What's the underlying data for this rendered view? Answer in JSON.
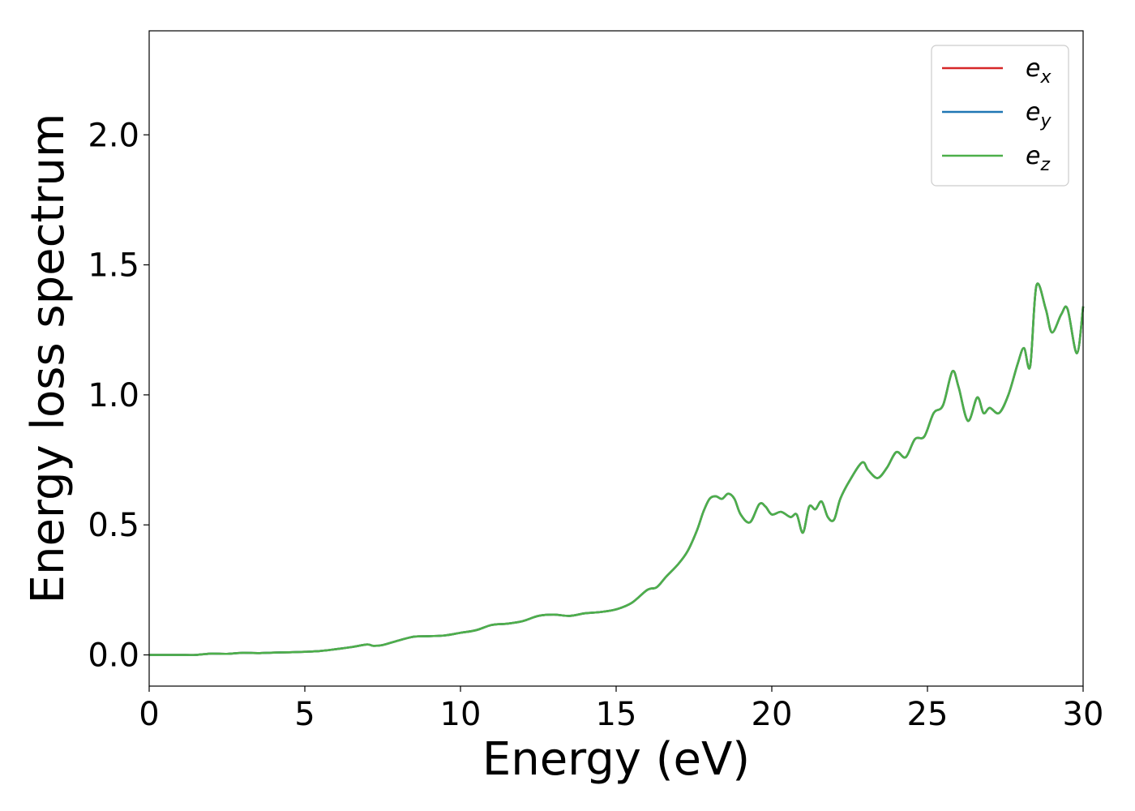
{
  "chart_data": {
    "type": "line",
    "title": "",
    "xlabel": "Energy (eV)",
    "ylabel": "Energy loss spectrum",
    "xlim": [
      0,
      30
    ],
    "ylim": [
      -0.12,
      2.4
    ],
    "xticks": [
      "0",
      "5",
      "10",
      "15",
      "20",
      "25",
      "30"
    ],
    "yticks": [
      "0.0",
      "0.5",
      "1.0",
      "1.5",
      "2.0"
    ],
    "grid": false,
    "legend_position": "top-right",
    "x": [
      0,
      0.5,
      1.0,
      1.5,
      2.0,
      2.5,
      3.0,
      3.5,
      4.0,
      4.5,
      5.0,
      5.5,
      6.0,
      6.5,
      7.0,
      7.2,
      7.5,
      8.0,
      8.5,
      9.0,
      9.5,
      10.0,
      10.5,
      11.0,
      11.5,
      12.0,
      12.5,
      13.0,
      13.5,
      14.0,
      14.5,
      15.0,
      15.5,
      16.0,
      16.3,
      16.6,
      17.0,
      17.3,
      17.6,
      17.8,
      18.0,
      18.2,
      18.4,
      18.6,
      18.8,
      19.0,
      19.3,
      19.6,
      19.8,
      20.0,
      20.3,
      20.6,
      20.8,
      21.0,
      21.2,
      21.4,
      21.6,
      21.8,
      22.0,
      22.2,
      22.5,
      22.9,
      23.1,
      23.4,
      23.7,
      24.0,
      24.3,
      24.6,
      24.9,
      25.2,
      25.5,
      25.8,
      26.0,
      26.3,
      26.6,
      26.8,
      27.0,
      27.3,
      27.6,
      27.9,
      28.1,
      28.3,
      28.5,
      28.8,
      29.0,
      29.3,
      29.5,
      29.8,
      30.0
    ],
    "series": [
      {
        "name": "e_x",
        "color": "#d62728",
        "values": [
          0.0,
          0.0,
          0.0,
          0.0,
          0.005,
          0.004,
          0.008,
          0.007,
          0.009,
          0.01,
          0.012,
          0.015,
          0.022,
          0.03,
          0.04,
          0.035,
          0.038,
          0.055,
          0.07,
          0.072,
          0.075,
          0.085,
          0.095,
          0.115,
          0.12,
          0.13,
          0.15,
          0.155,
          0.15,
          0.16,
          0.165,
          0.175,
          0.2,
          0.25,
          0.26,
          0.3,
          0.35,
          0.4,
          0.48,
          0.55,
          0.6,
          0.61,
          0.6,
          0.62,
          0.6,
          0.54,
          0.51,
          0.58,
          0.57,
          0.54,
          0.55,
          0.53,
          0.54,
          0.47,
          0.57,
          0.56,
          0.59,
          0.53,
          0.52,
          0.6,
          0.67,
          0.74,
          0.71,
          0.68,
          0.72,
          0.78,
          0.76,
          0.83,
          0.84,
          0.93,
          0.96,
          1.09,
          1.03,
          0.9,
          0.99,
          0.93,
          0.95,
          0.93,
          1.0,
          1.12,
          1.18,
          1.11,
          1.42,
          1.33,
          1.24,
          1.31,
          1.33,
          1.16,
          1.34
        ]
      },
      {
        "name": "e_y",
        "color": "#1f77b4",
        "values": [
          0.0,
          0.0,
          0.0,
          0.0,
          0.005,
          0.004,
          0.008,
          0.007,
          0.009,
          0.01,
          0.012,
          0.015,
          0.022,
          0.03,
          0.04,
          0.035,
          0.038,
          0.055,
          0.07,
          0.072,
          0.075,
          0.085,
          0.095,
          0.115,
          0.12,
          0.13,
          0.15,
          0.155,
          0.15,
          0.16,
          0.165,
          0.175,
          0.2,
          0.25,
          0.26,
          0.3,
          0.35,
          0.4,
          0.48,
          0.55,
          0.6,
          0.61,
          0.6,
          0.62,
          0.6,
          0.54,
          0.51,
          0.58,
          0.57,
          0.54,
          0.55,
          0.53,
          0.54,
          0.47,
          0.57,
          0.56,
          0.59,
          0.53,
          0.52,
          0.6,
          0.67,
          0.74,
          0.71,
          0.68,
          0.72,
          0.78,
          0.76,
          0.83,
          0.84,
          0.93,
          0.96,
          1.09,
          1.03,
          0.9,
          0.99,
          0.93,
          0.95,
          0.93,
          1.0,
          1.12,
          1.18,
          1.11,
          1.42,
          1.33,
          1.24,
          1.31,
          1.33,
          1.16,
          1.34
        ]
      },
      {
        "name": "e_z",
        "color": "#4daf4a",
        "values": [
          0.0,
          0.0,
          0.0,
          0.0,
          0.005,
          0.004,
          0.008,
          0.007,
          0.009,
          0.01,
          0.012,
          0.015,
          0.022,
          0.03,
          0.04,
          0.035,
          0.038,
          0.055,
          0.07,
          0.072,
          0.075,
          0.085,
          0.095,
          0.115,
          0.12,
          0.13,
          0.15,
          0.155,
          0.15,
          0.16,
          0.165,
          0.175,
          0.2,
          0.25,
          0.26,
          0.3,
          0.35,
          0.4,
          0.48,
          0.55,
          0.6,
          0.61,
          0.6,
          0.62,
          0.6,
          0.54,
          0.51,
          0.58,
          0.57,
          0.54,
          0.55,
          0.53,
          0.54,
          0.47,
          0.57,
          0.56,
          0.59,
          0.53,
          0.52,
          0.6,
          0.67,
          0.74,
          0.71,
          0.68,
          0.72,
          0.78,
          0.76,
          0.83,
          0.84,
          0.93,
          0.96,
          1.09,
          1.03,
          0.9,
          0.99,
          0.93,
          0.95,
          0.93,
          1.0,
          1.12,
          1.18,
          1.11,
          1.42,
          1.33,
          1.24,
          1.31,
          1.33,
          1.16,
          1.34
        ]
      }
    ],
    "legend": [
      {
        "base": "e",
        "sub": "x",
        "color": "#d62728"
      },
      {
        "base": "e",
        "sub": "y",
        "color": "#1f77b4"
      },
      {
        "base": "e",
        "sub": "z",
        "color": "#4daf4a"
      }
    ]
  }
}
